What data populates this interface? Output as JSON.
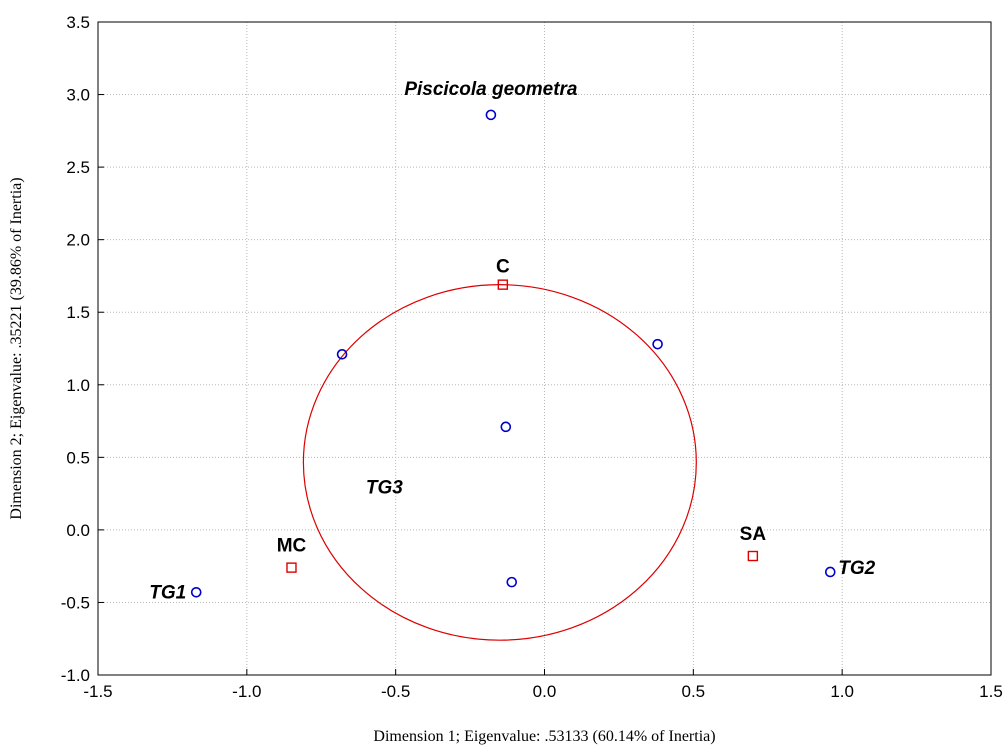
{
  "chart_data": {
    "type": "scatter",
    "xlabel": "Dimension 1; Eigenvalue: .53133 (60.14% of Inertia)",
    "ylabel": "Dimension 2; Eigenvalue: .35221 (39.86% of Inertia)",
    "xlim": [
      -1.5,
      1.5
    ],
    "ylim": [
      -1.0,
      3.5
    ],
    "xticks": [
      "-1.5",
      "-1.0",
      "-0.5",
      "0.0",
      "0.5",
      "1.0",
      "1.5"
    ],
    "yticks": [
      "-1.0",
      "-0.5",
      "0.0",
      "0.5",
      "1.0",
      "1.5",
      "2.0",
      "2.5",
      "3.0",
      "3.5"
    ],
    "grid": true,
    "colors": {
      "row_points": "#0000cc",
      "column_points": "#dd0000",
      "ellipse": "#dd0000"
    },
    "series": [
      {
        "marker": "circle",
        "points": [
          {
            "x": -0.18,
            "y": 2.86,
            "label": "Piscicola geometra",
            "italic": true
          },
          {
            "x": -0.68,
            "y": 1.21,
            "label": ""
          },
          {
            "x": 0.38,
            "y": 1.28,
            "label": ""
          },
          {
            "x": -0.13,
            "y": 0.71,
            "label": ""
          },
          {
            "x": -0.11,
            "y": -0.36,
            "label": ""
          },
          {
            "x": -1.17,
            "y": -0.43,
            "label": "TG1",
            "italic": true
          },
          {
            "x": 0.96,
            "y": -0.29,
            "label": "TG2",
            "italic": true
          }
        ]
      },
      {
        "marker": "square",
        "points": [
          {
            "x": -0.14,
            "y": 1.69,
            "label": "C",
            "italic": false
          },
          {
            "x": -0.85,
            "y": -0.26,
            "label": "MC",
            "italic": false
          },
          {
            "x": 0.7,
            "y": -0.18,
            "label": "SA",
            "italic": false
          }
        ]
      }
    ],
    "annotations": [
      {
        "shape": "ellipse",
        "cx": -0.15,
        "cy": 0.465,
        "rx": 0.66,
        "ry": 1.225,
        "label": "TG3",
        "label_x": -0.6,
        "label_y": 0.3
      }
    ]
  }
}
